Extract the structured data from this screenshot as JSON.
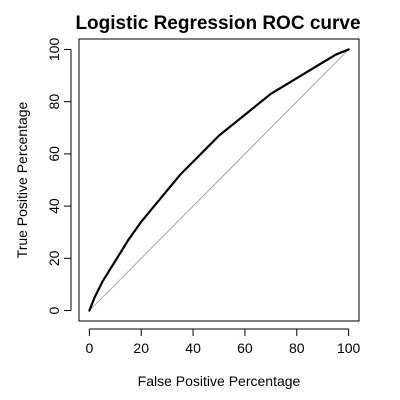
{
  "chart_data": {
    "type": "line",
    "title": "Logistic Regression ROC curve",
    "xlabel": "False Positive Percentage",
    "ylabel": "True Positive Percentage",
    "xlim": [
      -4,
      104
    ],
    "ylim": [
      -4,
      104
    ],
    "xticks": [
      0,
      20,
      40,
      60,
      80,
      100
    ],
    "yticks": [
      0,
      20,
      40,
      60,
      80,
      100
    ],
    "grid": false,
    "legend": "none",
    "series": [
      {
        "x": [
          0,
          2,
          5,
          10,
          15,
          20,
          25,
          30,
          35,
          40,
          45,
          50,
          55,
          60,
          65,
          70,
          75,
          80,
          85,
          90,
          95,
          100
        ],
        "y": [
          0,
          5,
          11,
          19,
          27,
          34,
          40,
          46,
          52,
          57,
          62,
          67,
          71,
          75,
          79,
          83,
          86,
          89,
          92,
          95,
          98,
          100
        ],
        "color": "#000000"
      }
    ],
    "reference_line": {
      "x": [
        0,
        100
      ],
      "y": [
        0,
        100
      ],
      "color": "#a6a6a6"
    }
  }
}
